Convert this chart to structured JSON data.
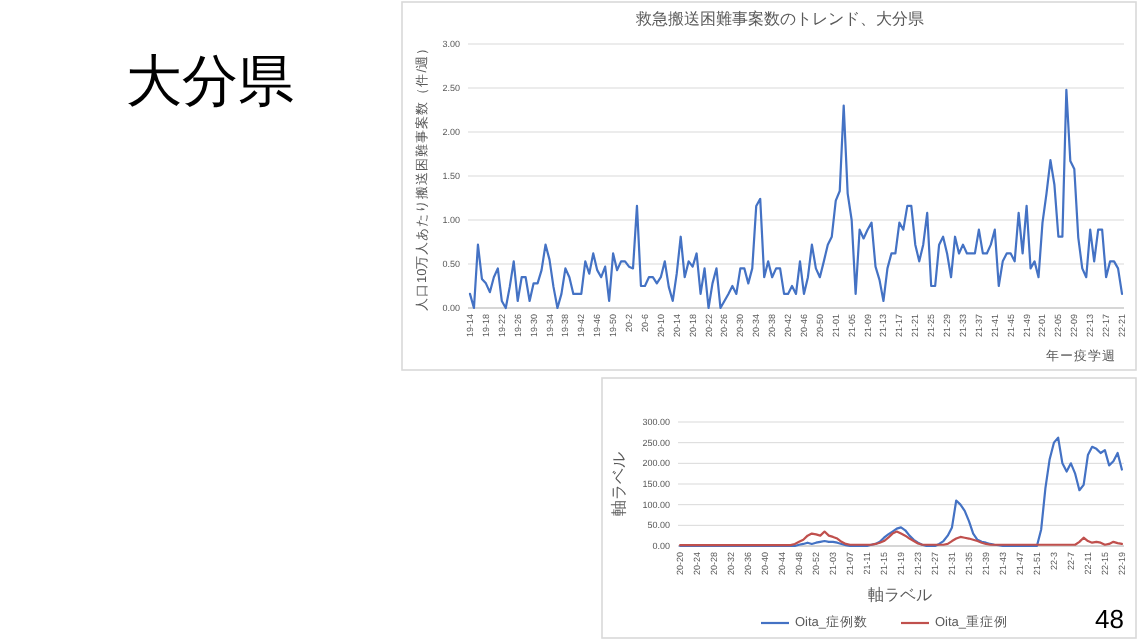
{
  "chart_data": [
    {
      "type": "line",
      "title": "救急搬送困難事案数のトレンド、大分県",
      "ylabel": "人口10万人あたり搬送困難事案数（件/週）",
      "xlabel": "年ー疫学週",
      "annotations": [
        "大分県"
      ],
      "categories": [
        "19-14",
        null,
        null,
        null,
        "19-18",
        null,
        null,
        null,
        "19-22",
        null,
        null,
        null,
        "19-26",
        null,
        null,
        null,
        "19-30",
        null,
        null,
        null,
        "19-34",
        null,
        null,
        null,
        "19-38",
        null,
        null,
        null,
        "19-42",
        null,
        null,
        null,
        "19-46",
        null,
        null,
        null,
        "19-50",
        null,
        null,
        null,
        "20-2",
        null,
        null,
        null,
        "20-6",
        null,
        null,
        null,
        "20-10",
        null,
        null,
        null,
        "20-14",
        null,
        null,
        null,
        "20-18",
        null,
        null,
        null,
        "20-22",
        null,
        null,
        null,
        "20-26",
        null,
        null,
        null,
        "20-30",
        null,
        null,
        null,
        "20-34",
        null,
        null,
        null,
        "20-38",
        null,
        null,
        null,
        "20-42",
        null,
        null,
        null,
        "20-46",
        null,
        null,
        null,
        "20-50",
        null,
        null,
        null,
        "21-01",
        null,
        null,
        null,
        "21-05",
        null,
        null,
        null,
        "21-09",
        null,
        null,
        null,
        "21-13",
        null,
        null,
        null,
        "21-17",
        null,
        null,
        null,
        "21-21",
        null,
        null,
        null,
        "21-25",
        null,
        null,
        null,
        "21-29",
        null,
        null,
        null,
        "21-33",
        null,
        null,
        null,
        "21-37",
        null,
        null,
        null,
        "21-41",
        null,
        null,
        null,
        "21-45",
        null,
        null,
        null,
        "21-49",
        null,
        null,
        null,
        "22-01",
        null,
        null,
        null,
        "22-05",
        null,
        null,
        null,
        "22-09",
        null,
        null,
        null,
        "22-13",
        null,
        null,
        null,
        "22-17",
        null,
        null,
        null,
        "22-21"
      ],
      "series": [
        {
          "color": "#4472c4",
          "values": [
            0.16,
            0.0,
            0.72,
            0.33,
            0.28,
            0.18,
            0.35,
            0.45,
            0.08,
            0.0,
            0.24,
            0.53,
            0.08,
            0.35,
            0.35,
            0.08,
            0.28,
            0.28,
            0.43,
            0.72,
            0.55,
            0.24,
            0.0,
            0.16,
            0.45,
            0.35,
            0.16,
            0.16,
            0.16,
            0.53,
            0.39,
            0.62,
            0.43,
            0.35,
            0.47,
            0.08,
            0.62,
            0.43,
            0.53,
            0.53,
            0.47,
            0.45,
            1.16,
            0.25,
            0.25,
            0.35,
            0.35,
            0.28,
            0.35,
            0.53,
            0.24,
            0.08,
            0.39,
            0.81,
            0.35,
            0.53,
            0.47,
            0.62,
            0.16,
            0.45,
            0.0,
            0.28,
            0.45,
            0.0,
            0.08,
            0.16,
            0.25,
            0.16,
            0.45,
            0.45,
            0.28,
            0.45,
            1.16,
            1.24,
            0.35,
            0.53,
            0.35,
            0.45,
            0.45,
            0.16,
            0.16,
            0.25,
            0.16,
            0.53,
            0.16,
            0.35,
            0.72,
            0.45,
            0.35,
            0.53,
            0.72,
            0.81,
            1.22,
            1.33,
            2.3,
            1.3,
            1.0,
            0.16,
            0.89,
            0.79,
            0.89,
            0.97,
            0.47,
            0.32,
            0.08,
            0.45,
            0.62,
            0.62,
            0.97,
            0.89,
            1.16,
            1.16,
            0.72,
            0.53,
            0.72,
            1.08,
            0.25,
            0.25,
            0.72,
            0.81,
            0.62,
            0.35,
            0.81,
            0.62,
            0.72,
            0.62,
            0.62,
            0.62,
            0.89,
            0.62,
            0.62,
            0.72,
            0.89,
            0.25,
            0.53,
            0.62,
            0.62,
            0.53,
            1.08,
            0.62,
            1.16,
            0.45,
            0.53,
            0.35,
            0.97,
            1.3,
            1.68,
            1.4,
            0.81,
            0.81,
            2.48,
            1.67,
            1.58,
            0.8,
            0.45,
            0.35,
            0.89,
            0.53,
            0.89,
            0.89,
            0.35,
            0.53,
            0.53,
            0.45,
            0.16
          ]
        }
      ],
      "ylim": [
        0,
        3
      ],
      "yticks": [
        {
          "value": 0,
          "label": "0.00"
        },
        {
          "value": 0.5,
          "label": "0.50"
        },
        {
          "value": 1,
          "label": "1.00"
        },
        {
          "value": 1.5,
          "label": "1.50"
        },
        {
          "value": 2,
          "label": "2.00"
        },
        {
          "value": 2.5,
          "label": "2.50"
        },
        {
          "value": 3,
          "label": "3.00"
        }
      ],
      "grid": "y"
    },
    {
      "type": "line",
      "xlabel": "軸ラベル",
      "ylabel": "軸ラベル",
      "annotations": [
        "48"
      ],
      "legend": "bottom",
      "categories": [
        "20-20",
        null,
        null,
        null,
        "20-24",
        null,
        null,
        null,
        "20-28",
        null,
        null,
        null,
        "20-32",
        null,
        null,
        null,
        "20-36",
        null,
        null,
        null,
        "20-40",
        null,
        null,
        null,
        "20-44",
        null,
        null,
        null,
        "20-48",
        null,
        null,
        null,
        "20-52",
        null,
        null,
        null,
        "21-03",
        null,
        null,
        null,
        "21-07",
        null,
        null,
        null,
        "21-11",
        null,
        null,
        null,
        "21-15",
        null,
        null,
        null,
        "21-19",
        null,
        null,
        null,
        "21-23",
        null,
        null,
        null,
        "21-27",
        null,
        null,
        null,
        "21-31",
        null,
        null,
        null,
        "21-35",
        null,
        null,
        null,
        "21-39",
        null,
        null,
        null,
        "21-43",
        null,
        null,
        null,
        "21-47",
        null,
        null,
        null,
        "21-51",
        null,
        null,
        null,
        "22-3",
        null,
        null,
        null,
        "22-7",
        null,
        null,
        null,
        "22-11",
        null,
        null,
        null,
        "22-15",
        null,
        null,
        null,
        "22-19"
      ],
      "series": [
        {
          "name": "Oita_症例数",
          "color": "#4472c4",
          "values": [
            0,
            0,
            0,
            0,
            0,
            0,
            0,
            0,
            0,
            0,
            0,
            0,
            0,
            0,
            0,
            0,
            0,
            0,
            0,
            0,
            0,
            0,
            0,
            0,
            0,
            0,
            0,
            0,
            3,
            5,
            8,
            5,
            8,
            10,
            12,
            10,
            10,
            8,
            5,
            2,
            0,
            0,
            0,
            0,
            0,
            3,
            5,
            10,
            20,
            28,
            35,
            42,
            45,
            38,
            25,
            15,
            8,
            3,
            0,
            0,
            0,
            5,
            12,
            25,
            45,
            110,
            100,
            85,
            60,
            30,
            15,
            10,
            8,
            5,
            3,
            2,
            0,
            0,
            0,
            0,
            0,
            0,
            0,
            0,
            0,
            40,
            140,
            210,
            250,
            262,
            200,
            180,
            200,
            175,
            135,
            148,
            220,
            240,
            235,
            225,
            232,
            195,
            205,
            225,
            185
          ]
        },
        {
          "name": "Oita_重症例",
          "color": "#c0504d",
          "values": [
            2,
            2,
            2,
            2,
            2,
            2,
            2,
            2,
            2,
            2,
            2,
            2,
            2,
            2,
            2,
            2,
            2,
            2,
            2,
            2,
            2,
            2,
            2,
            2,
            2,
            2,
            2,
            5,
            10,
            15,
            25,
            30,
            28,
            25,
            35,
            25,
            22,
            18,
            10,
            5,
            3,
            3,
            3,
            3,
            3,
            3,
            5,
            8,
            12,
            20,
            30,
            35,
            30,
            25,
            18,
            12,
            6,
            3,
            3,
            3,
            3,
            3,
            3,
            5,
            12,
            18,
            22,
            20,
            18,
            15,
            12,
            8,
            5,
            3,
            3,
            3,
            3,
            3,
            3,
            3,
            3,
            3,
            3,
            3,
            3,
            3,
            3,
            3,
            3,
            3,
            3,
            3,
            3,
            3,
            10,
            20,
            12,
            8,
            10,
            8,
            3,
            5,
            10,
            7,
            5
          ]
        }
      ],
      "ylim": [
        0,
        300
      ],
      "yticks": [
        {
          "value": 0,
          "label": "0.00"
        },
        {
          "value": 50,
          "label": "50.00"
        },
        {
          "value": 100,
          "label": "100.00"
        },
        {
          "value": 150,
          "label": "150.00"
        },
        {
          "value": 200,
          "label": "200.00"
        },
        {
          "value": 250,
          "label": "250.00"
        },
        {
          "value": 300,
          "label": "300.00"
        }
      ],
      "grid": "y"
    }
  ]
}
